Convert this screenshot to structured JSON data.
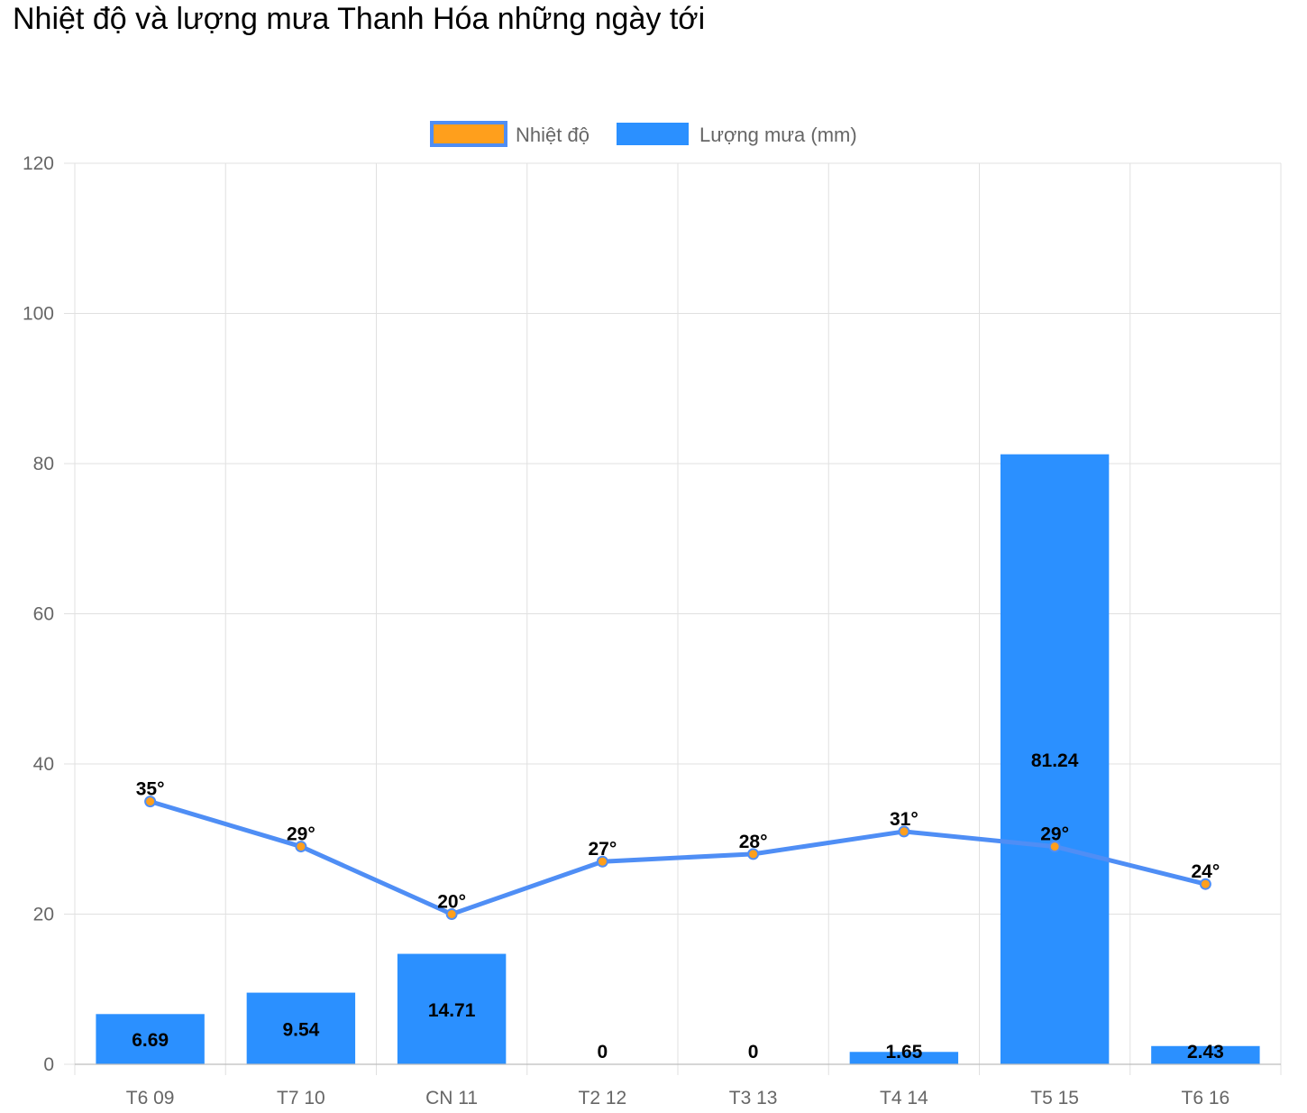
{
  "title": "Nhiệt độ và lượng mưa Thanh Hóa những ngày tới",
  "legend": {
    "temperature_label": "Nhiệt độ",
    "rain_label": "Lượng mưa (mm)"
  },
  "colors": {
    "temperature_line": "#4f8ef5",
    "temperature_point": "#ff9f1c",
    "rain_bar": "#2b90ff",
    "grid": "#e0e0e0"
  },
  "chart_data": {
    "type": "bar",
    "categories": [
      "T6 09",
      "T7 10",
      "CN 11",
      "T2 12",
      "T3 13",
      "T4 14",
      "T5 15",
      "T6 16"
    ],
    "series": [
      {
        "name": "Nhiệt độ",
        "type": "line",
        "values": [
          35,
          29,
          20,
          27,
          28,
          31,
          29,
          24
        ],
        "labels": [
          "35°",
          "29°",
          "20°",
          "27°",
          "28°",
          "31°",
          "29°",
          "24°"
        ]
      },
      {
        "name": "Lượng mưa (mm)",
        "type": "bar",
        "values": [
          6.69,
          9.54,
          14.71,
          0,
          0,
          1.65,
          81.24,
          2.43
        ],
        "labels": [
          "6.69",
          "9.54",
          "14.71",
          "0",
          "0",
          "1.65",
          "81.24",
          "2.43"
        ]
      }
    ],
    "ylim": [
      0,
      120
    ],
    "yticks": [
      "0",
      "20",
      "40",
      "60",
      "80",
      "100",
      "120"
    ],
    "grid": true,
    "legend_position": "top"
  }
}
